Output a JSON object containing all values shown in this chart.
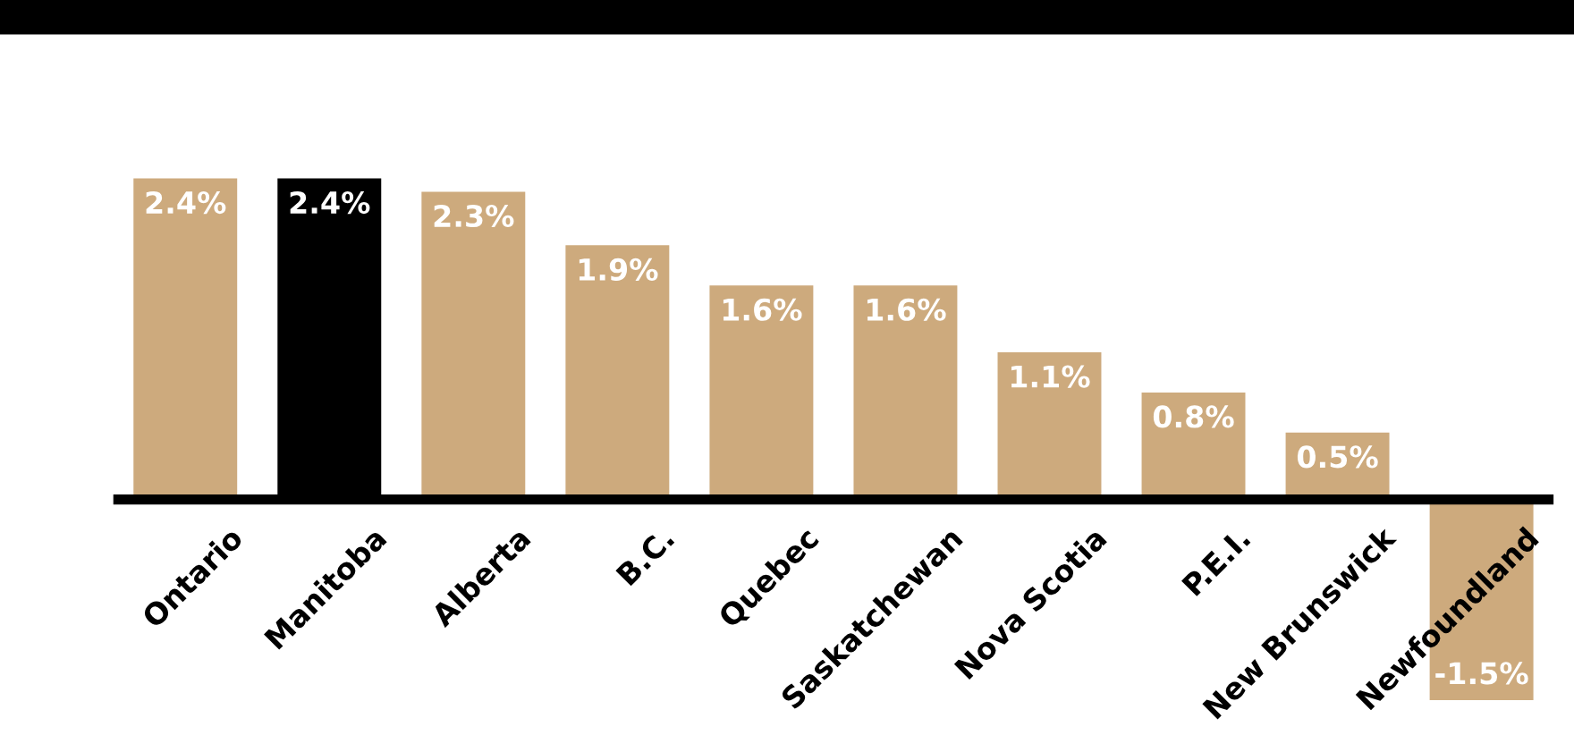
{
  "chart_data": {
    "type": "bar",
    "categories": [
      "Ontario",
      "Manitoba",
      "Alberta",
      "B.C.",
      "Quebec",
      "Saskatchewan",
      "Nova Scotia",
      "P.E.I.",
      "New Brunswick",
      "Newfoundland"
    ],
    "values": [
      2.4,
      2.4,
      2.3,
      1.9,
      1.6,
      1.6,
      1.1,
      0.8,
      0.5,
      -1.5
    ],
    "colors": [
      "#cdaa7d",
      "#000000",
      "#cdaa7d",
      "#cdaa7d",
      "#cdaa7d",
      "#cdaa7d",
      "#cdaa7d",
      "#cdaa7d",
      "#cdaa7d",
      "#cdaa7d"
    ],
    "value_labels": [
      "2.4%",
      "2.4%",
      "2.3%",
      "1.9%",
      "1.6%",
      "1.6%",
      "1.1%",
      "0.8%",
      "0.5%",
      "-1.5%"
    ]
  }
}
